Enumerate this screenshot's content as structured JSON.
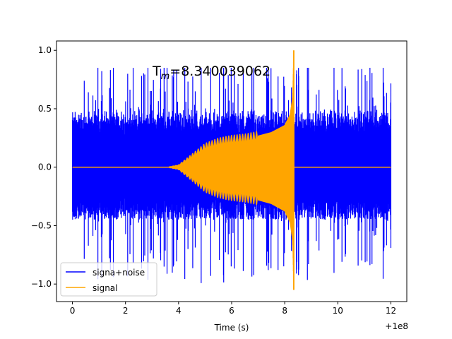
{
  "chart_data": {
    "type": "line",
    "title": "",
    "annotation": "T_m=8.340039062",
    "xlabel": "Time (s)",
    "ylabel": "",
    "x_offset_label": "+1e8",
    "xlim": [
      -0.6,
      12.6
    ],
    "ylim": [
      -1.15,
      1.08
    ],
    "x_ticks": [
      0,
      2,
      4,
      6,
      8,
      10,
      12
    ],
    "y_ticks": [
      -1.0,
      -0.5,
      0.0,
      0.5,
      1.0
    ],
    "x_tick_labels": [
      "0",
      "2",
      "4",
      "6",
      "8",
      "10",
      "12"
    ],
    "y_tick_labels": [
      "−1.0",
      "−0.5",
      "0.0",
      "0.5",
      "1.0"
    ],
    "grid": false,
    "legend_position": "lower-left",
    "series": [
      {
        "name": "signa+noise",
        "color": "#0000ff",
        "x_range": [
          0,
          12
        ],
        "typical_envelope": 0.45,
        "peak_max": 0.85,
        "peak_min": -1.0
      },
      {
        "name": "signal",
        "color": "#ffa500",
        "x": [
          0,
          3.5,
          4,
          4.5,
          5,
          5.5,
          6,
          6.5,
          7,
          7.5,
          8,
          8.2,
          8.3,
          8.34,
          8.4,
          12
        ],
        "envelope": [
          0,
          0,
          0.02,
          0.1,
          0.18,
          0.22,
          0.24,
          0.25,
          0.27,
          0.3,
          0.36,
          0.45,
          0.6,
          1.0,
          0,
          0
        ],
        "spike_min": -1.05
      }
    ]
  }
}
